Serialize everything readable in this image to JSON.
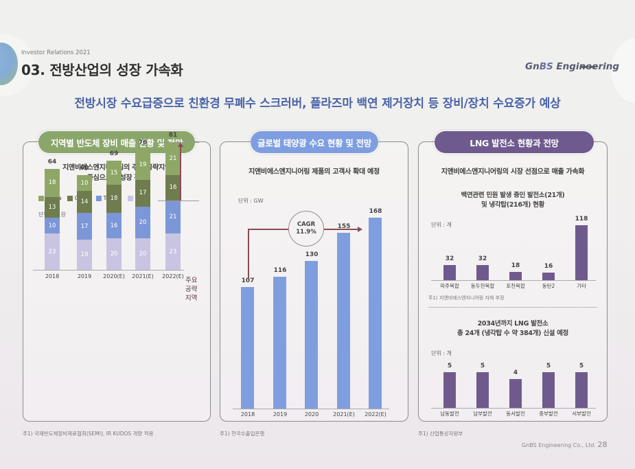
{
  "header": {
    "ir_label": "Investor Relations 2021",
    "page_title": "03. 전방산업의 성장 가속화",
    "logo_prefix": "Gn",
    "logo_bs": "BS",
    "logo_suffix": " Engineering",
    "subtitle": "전방시장 수요급증으로 친환경 무폐수 스크러버, 플라즈마 백연 제거장치 등 장비/장치 수요증가 예상"
  },
  "panel1": {
    "pill": "지역별 반도체 장비 매출 현황 및 전망",
    "sub_line1": "지앤비에스엔지니어링의 주요 공략지역",
    "sub_line2": "중심으로 급성장 전망",
    "unit": "단위 : 조 원",
    "key_region_label": [
      "주요",
      "공략",
      "지역"
    ],
    "footnote": "주1) 국제반도체장비재료협회(SEMI), IR KUDOS 개량 적용",
    "legend": [
      {
        "name": "Korea",
        "color": "#8fa766"
      },
      {
        "name": "China",
        "color": "#6f7c4e"
      },
      {
        "name": "Taiwan",
        "color": "#7b97d8"
      },
      {
        "name": "기타",
        "color": "#c9c4e2"
      }
    ]
  },
  "panel2": {
    "pill": "글로벌 태양광 수요 현황 및 전망",
    "sub": "지앤비에스엔지니어링 제품의 고객사 확대 예정",
    "unit": "단위 : GW",
    "cagr_label": "CAGR",
    "cagr_value": "11.9%",
    "footnote": "주1) 한국수출입은행",
    "bar_color": "#7f9ee0"
  },
  "panel3": {
    "pill": "LNG 발전소 현황과 전망",
    "sub": "지앤비에스엔지니어링의 시장 선점으로 매출 가속화",
    "chart1_title_1": "백연관련 민원 발생 중인 발전소(21개)",
    "chart1_title_2": "및 냉각탑(216개) 현황",
    "chart1_unit": "단위 : 개",
    "chart1_note": "주1) 지앤비에스엔지니어링 자체 추정",
    "chart2_title_1": "2034년까지 LNG 발전소",
    "chart2_title_2": "총 24개 (냉각탑 수 약 384개) 신설 예정",
    "chart2_unit": "단위 : 개",
    "footnote": "주1) 산업통상자원부",
    "bar_color": "#6f5a8e"
  },
  "footer": {
    "company": "GnBS Engineering Co., Ltd.",
    "page": "28"
  },
  "chart_data": [
    {
      "type": "bar",
      "stacked": true,
      "title": "지역별 반도체 장비 매출 현황 및 전망",
      "ylabel": "조 원",
      "categories": [
        "2018",
        "2019",
        "2020(E)",
        "2021(E)",
        "2022(E)"
      ],
      "totals": [
        64,
        60,
        69,
        76,
        81
      ],
      "series": [
        {
          "name": "기타",
          "values": [
            23,
            19,
            20,
            20,
            23
          ]
        },
        {
          "name": "Taiwan",
          "values": [
            10,
            17,
            16,
            20,
            21
          ]
        },
        {
          "name": "China",
          "values": [
            13,
            14,
            18,
            17,
            16
          ]
        },
        {
          "name": "Korea",
          "values": [
            18,
            10,
            15,
            19,
            21
          ]
        }
      ],
      "annotation": "주요 공략지역"
    },
    {
      "type": "bar",
      "title": "글로벌 태양광 수요 현황 및 전망",
      "ylabel": "GW",
      "categories": [
        "2018",
        "2019",
        "2020",
        "2021(E)",
        "2022(E)"
      ],
      "values": [
        107,
        116,
        130,
        155,
        168
      ],
      "annotation": "CAGR 11.9%"
    },
    {
      "type": "bar",
      "title": "백연관련 민원 발생 중인 발전소(21개) 및 냉각탑(216개) 현황",
      "ylabel": "개",
      "categories": [
        "파주복합",
        "동두천복합",
        "포천복합",
        "동탄2",
        "기타"
      ],
      "values": [
        32,
        32,
        18,
        16,
        118
      ]
    },
    {
      "type": "bar",
      "title": "2034년까지 LNG 발전소 총 24개 (냉각탑 수 약 384개) 신설 예정",
      "ylabel": "개",
      "categories": [
        "남동발전",
        "남부발전",
        "동서발전",
        "중부발전",
        "서부발전"
      ],
      "values": [
        5,
        5,
        4,
        5,
        5
      ]
    }
  ]
}
